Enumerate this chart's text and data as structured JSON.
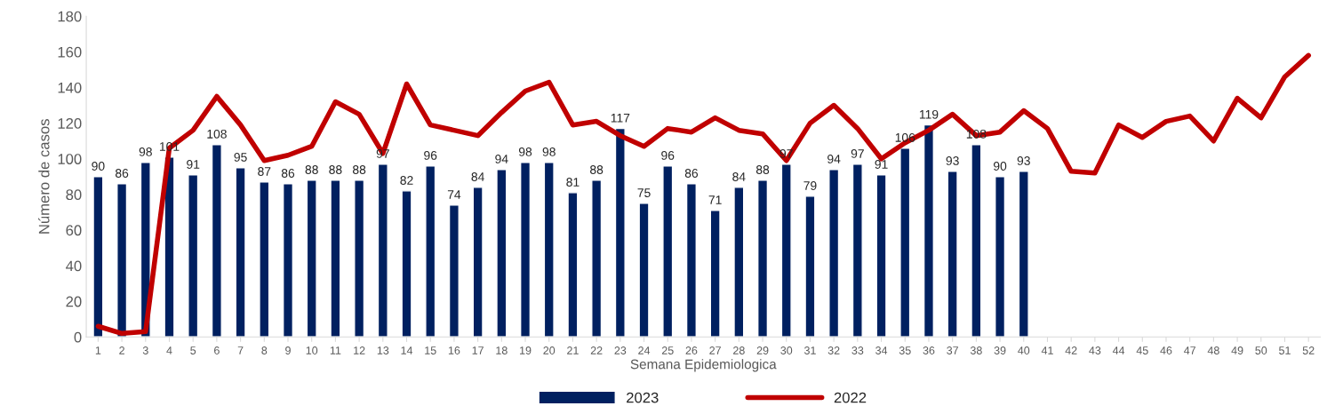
{
  "chart_data": {
    "type": "bar",
    "xlabel": "Semana Epidemiologica",
    "ylabel": "Número de casos",
    "categories": [
      "1",
      "2",
      "3",
      "4",
      "5",
      "6",
      "7",
      "8",
      "9",
      "10",
      "11",
      "12",
      "13",
      "14",
      "15",
      "16",
      "17",
      "18",
      "19",
      "20",
      "21",
      "22",
      "23",
      "24",
      "25",
      "26",
      "27",
      "28",
      "29",
      "30",
      "31",
      "32",
      "33",
      "34",
      "35",
      "36",
      "37",
      "38",
      "39",
      "40",
      "41",
      "42",
      "43",
      "44",
      "45",
      "46",
      "47",
      "48",
      "49",
      "50",
      "51",
      "52"
    ],
    "series": [
      {
        "name": "2023",
        "color": "#002060",
        "data_labels": true,
        "values": [
          90,
          86,
          98,
          101,
          91,
          108,
          95,
          87,
          86,
          88,
          88,
          88,
          97,
          82,
          96,
          74,
          84,
          94,
          98,
          98,
          81,
          88,
          117,
          75,
          96,
          86,
          71,
          84,
          88,
          97,
          79,
          94,
          97,
          91,
          106,
          119,
          93,
          108,
          90,
          93,
          null,
          null,
          null,
          null,
          null,
          null,
          null,
          null,
          null,
          null,
          null,
          null
        ]
      },
      {
        "name": "2022",
        "type": "line",
        "color": "#c00000",
        "marker": "none",
        "values": [
          6,
          2,
          3,
          106,
          116,
          135,
          119,
          99,
          102,
          107,
          132,
          125,
          103,
          142,
          119,
          116,
          113,
          126,
          138,
          143,
          119,
          121,
          113,
          107,
          117,
          115,
          123,
          116,
          114,
          99,
          120,
          130,
          117,
          100,
          109,
          116,
          125,
          113,
          115,
          127,
          117,
          93,
          92,
          119,
          112,
          121,
          124,
          110,
          134,
          123,
          146,
          158
        ]
      }
    ],
    "ylim": [
      0,
      180
    ],
    "yticks": [
      0,
      20,
      40,
      60,
      80,
      100,
      120,
      140,
      160,
      180
    ],
    "grid": false,
    "legend": "bottom"
  }
}
